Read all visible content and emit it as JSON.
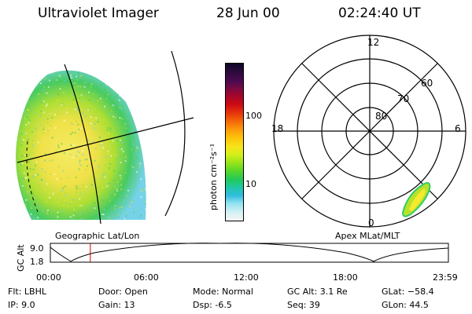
{
  "header": {
    "title": "Ultraviolet Imager",
    "date": "28 Jun 00",
    "time": "02:24:40 UT"
  },
  "left_panel": {
    "caption": "Geographic Lat/Lon"
  },
  "right_panel": {
    "caption": "Apex MLat/MLT",
    "lat_labels": [
      "80",
      "70",
      "60"
    ],
    "mlt_labels": {
      "top": "12",
      "bottom": "0",
      "left": "18",
      "right": "6"
    }
  },
  "colorbar": {
    "label": "photon cm⁻²s⁻¹",
    "ticks": [
      "100",
      "10"
    ],
    "colors": [
      "#0b0826",
      "#2a0a3c",
      "#4a0a50",
      "#7a0a40",
      "#a8062a",
      "#cc0a14",
      "#e83a0a",
      "#f56a0a",
      "#fb9a0a",
      "#fdc20a",
      "#f8e41a",
      "#d2f01a",
      "#9ae41a",
      "#5cd828",
      "#22c85c",
      "#20c8a6",
      "#30bce0",
      "#90e2f0",
      "#d6f2f6",
      "#f4f4f4"
    ]
  },
  "timeline": {
    "axis_label": "GC Alt",
    "y_ticks": [
      "9.0",
      "1.8"
    ],
    "x_ticks": [
      "00:00",
      "06:00",
      "12:00",
      "18:00",
      "23:59"
    ],
    "marker_time_hours": 2.41,
    "marker_color": "#cc0000"
  },
  "info": {
    "flt": "Flt: LBHL",
    "ip": "IP:  9.0",
    "door": "Door: Open",
    "gain": "Gain: 13",
    "mode": "Mode: Normal",
    "dsp": "Dsp:   -6.5",
    "gcalt": "GC Alt: 3.1 Re",
    "seq": "Seq: 39",
    "glat": "GLat: −58.4",
    "glon": "GLon:  44.5"
  }
}
